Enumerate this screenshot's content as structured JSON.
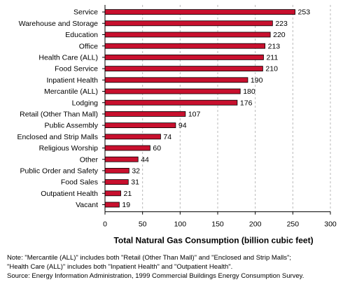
{
  "chart_data": {
    "type": "bar",
    "orientation": "horizontal",
    "categories": [
      "Service",
      "Warehouse and Storage",
      "Education",
      "Office",
      "Health Care (ALL)",
      "Food Service",
      "Inpatient Health",
      "Mercantile (ALL)",
      "Lodging",
      "Retail (Other Than Mall)",
      "Public Assembly",
      "Enclosed and Strip Malls",
      "Religious Worship",
      "Other",
      "Public Order and Safety",
      "Food Sales",
      "Outpatient Health",
      "Vacant"
    ],
    "values": [
      253,
      223,
      220,
      213,
      211,
      210,
      190,
      180,
      176,
      107,
      94,
      74,
      60,
      44,
      32,
      31,
      21,
      19
    ],
    "xlabel": "Total Natural Gas Consumption (billion cubic feet)",
    "xlim": [
      0,
      300
    ],
    "xticks": [
      0,
      50,
      100,
      150,
      200,
      250,
      300
    ],
    "grid": "vertical dashed",
    "legend": "none",
    "bar_color": "#c8102e",
    "bar_edge_color": "#000000"
  },
  "notes": {
    "line1": "Note: \"Mercantile (ALL)\" includes both \"Retail (Other Than Mall)\" and \"Enclosed and Strip Malls\";",
    "line2": "\"Health Care (ALL)\" includes both \"Inpatient Health\" and \"Outpatient Health\".",
    "source": "Source: Energy Information Administration, 1999 Commercial Buildings Energy Consumption Survey."
  }
}
